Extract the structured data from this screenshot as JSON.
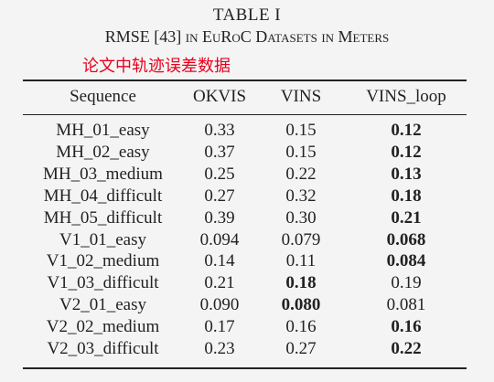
{
  "header": {
    "title": "TABLE I",
    "subtitle_rmse": "RMSE [43]",
    "subtitle_in1": "in",
    "subtitle_euroc": "EuRoC Datasets",
    "subtitle_in2": "in",
    "subtitle_meters": "Meters",
    "annotation": "论文中轨迹误差数据",
    "annotation_color": "#e8001c"
  },
  "table": {
    "columns": [
      "Sequence",
      "OKVIS",
      "VINS",
      "VINS_loop"
    ],
    "rows": [
      {
        "cells": [
          "MH_01_easy",
          "0.33",
          "0.15",
          "0.12"
        ],
        "bold": [
          false,
          false,
          false,
          true
        ]
      },
      {
        "cells": [
          "MH_02_easy",
          "0.37",
          "0.15",
          "0.12"
        ],
        "bold": [
          false,
          false,
          false,
          true
        ]
      },
      {
        "cells": [
          "MH_03_medium",
          "0.25",
          "0.22",
          "0.13"
        ],
        "bold": [
          false,
          false,
          false,
          true
        ]
      },
      {
        "cells": [
          "MH_04_difficult",
          "0.27",
          "0.32",
          "0.18"
        ],
        "bold": [
          false,
          false,
          false,
          true
        ]
      },
      {
        "cells": [
          "MH_05_difficult",
          "0.39",
          "0.30",
          "0.21"
        ],
        "bold": [
          false,
          false,
          false,
          true
        ]
      },
      {
        "cells": [
          "V1_01_easy",
          "0.094",
          "0.079",
          "0.068"
        ],
        "bold": [
          false,
          false,
          false,
          true
        ]
      },
      {
        "cells": [
          "V1_02_medium",
          "0.14",
          "0.11",
          "0.084"
        ],
        "bold": [
          false,
          false,
          false,
          true
        ]
      },
      {
        "cells": [
          "V1_03_difficult",
          "0.21",
          "0.18",
          "0.19"
        ],
        "bold": [
          false,
          false,
          true,
          false
        ]
      },
      {
        "cells": [
          "V2_01_easy",
          "0.090",
          "0.080",
          "0.081"
        ],
        "bold": [
          false,
          false,
          true,
          false
        ]
      },
      {
        "cells": [
          "V2_02_medium",
          "0.17",
          "0.16",
          "0.16"
        ],
        "bold": [
          false,
          false,
          false,
          true
        ]
      },
      {
        "cells": [
          "V2_03_difficult",
          "0.23",
          "0.27",
          "0.22"
        ],
        "bold": [
          false,
          false,
          false,
          true
        ]
      }
    ]
  }
}
